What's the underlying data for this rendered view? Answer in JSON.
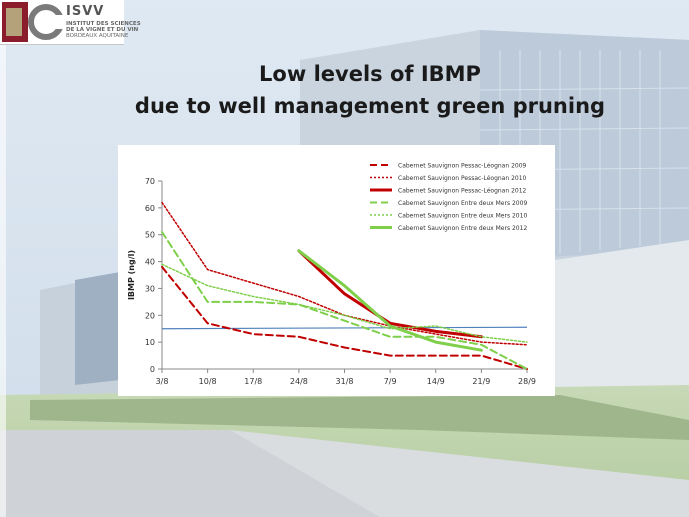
{
  "logo": {
    "name": "ISVV",
    "line1": "INSTITUT DES SCIENCES",
    "line2": "DE LA VIGNE ET DU VIN",
    "line3": "BORDEAUX AQUITAINE"
  },
  "title": {
    "line1": "Low levels of IBMP",
    "line2": "due to well management green pruning"
  },
  "colors": {
    "dark_red": "#c00000",
    "light_green": "#7fcf4b",
    "threshold_blue": "#4f81bd"
  },
  "chart_data": {
    "type": "line",
    "categories": [
      "3/8",
      "10/8",
      "17/8",
      "24/8",
      "31/8",
      "7/9",
      "14/9",
      "21/9",
      "28/9"
    ],
    "ylabel": "IBMP (ng/l)",
    "xlabel": "",
    "ylim": [
      0,
      70
    ],
    "yticks": [
      "0",
      "10",
      "20",
      "30",
      "40",
      "50",
      "60",
      "70"
    ],
    "grid": false,
    "legend": "top-right",
    "threshold": 15,
    "series": [
      {
        "name": "Cabernet Sauvignon Pessac-Léognan 2009",
        "color": "#c00000",
        "dash": "dashed",
        "width": 2,
        "values": [
          38,
          17,
          13,
          12,
          8,
          5,
          5,
          5,
          0
        ]
      },
      {
        "name": "Cabernet Sauvignon Pessac-Léognan 2010",
        "color": "#c00000",
        "dash": "dotted",
        "width": 1.5,
        "values": [
          62,
          37,
          32,
          27,
          20,
          16,
          13,
          10,
          9
        ]
      },
      {
        "name": "Cabernet Sauvignon Pessac-Léognan 2012",
        "color": "#c00000",
        "dash": "solid",
        "width": 3,
        "values": [
          null,
          null,
          null,
          44,
          28,
          17,
          14,
          12,
          null
        ]
      },
      {
        "name": "Cabernet Sauvignon Entre deux Mers 2009",
        "color": "#7fcf4b",
        "dash": "dashed",
        "width": 2,
        "values": [
          51,
          25,
          25,
          24,
          18,
          12,
          12,
          9,
          0
        ]
      },
      {
        "name": "Cabernet Sauvignon Entre deux Mers 2010",
        "color": "#7fcf4b",
        "dash": "dotted",
        "width": 1.5,
        "values": [
          39,
          31,
          27,
          24,
          20,
          15,
          16,
          12,
          10
        ]
      },
      {
        "name": "Cabernet Sauvignon Entre deux Mers 2012",
        "color": "#7fcf4b",
        "dash": "solid",
        "width": 3,
        "values": [
          null,
          null,
          null,
          44,
          31,
          16,
          10,
          7,
          null
        ]
      }
    ]
  }
}
